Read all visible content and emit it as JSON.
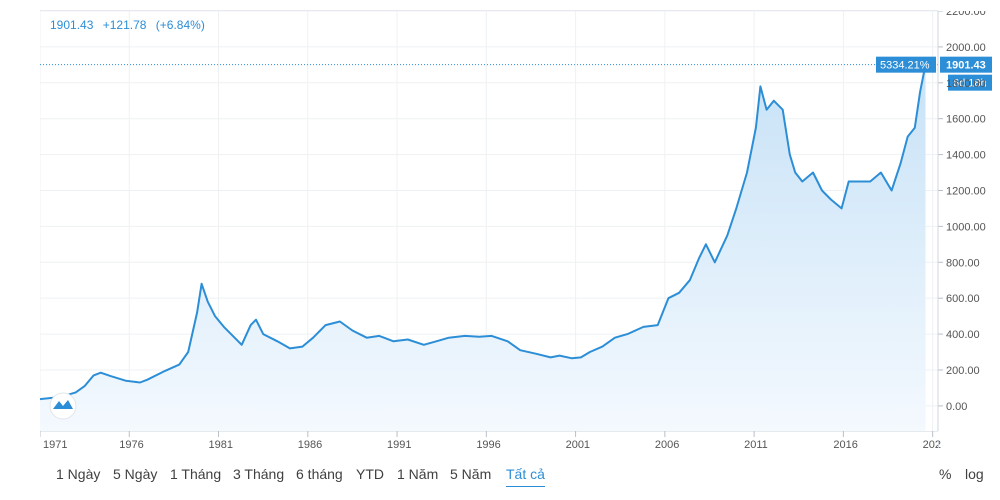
{
  "header": {
    "last_value": "1901.43",
    "change": "+121.78",
    "change_pct": "(+6.84%)"
  },
  "price_tags": {
    "percent_label": "5334.21%",
    "value_label": "1901.43",
    "time_label": "6d 18h"
  },
  "range_buttons": [
    {
      "label": "1 Ngày"
    },
    {
      "label": "5 Ngày"
    },
    {
      "label": "1 Tháng"
    },
    {
      "label": "3 Tháng"
    },
    {
      "label": "6 tháng"
    },
    {
      "label": "YTD"
    },
    {
      "label": "1 Năm"
    },
    {
      "label": "5 Năm"
    },
    {
      "label": "Tất cả"
    }
  ],
  "active_range": "Tất cả",
  "options": {
    "percent": "%",
    "log": "log"
  },
  "colors": {
    "line": "#2c8ed6",
    "fill_top": "#c7e2f7",
    "fill_bottom": "#f4f9fe",
    "tag_bg": "#2c8ed6",
    "tag_text": "#ffffff"
  },
  "chart_data": {
    "type": "area",
    "title": "",
    "xlabel": "",
    "ylabel": "",
    "x_tick_labels": [
      "1971",
      "1976",
      "1981",
      "1986",
      "1991",
      "1996",
      "2001",
      "2006",
      "2011",
      "2016",
      "202"
    ],
    "y_tick_labels": [
      "2200.00",
      "2000.00",
      "1800.00",
      "1600.00",
      "1400.00",
      "1200.00",
      "1000.00",
      "800.00",
      "600.00",
      "400.00",
      "200.00",
      "0.00"
    ],
    "ylim": [
      -140,
      2200
    ],
    "xlim": [
      1971,
      2021.3
    ],
    "grid": true,
    "series": [
      {
        "x": [
          1971,
          1972,
          1972.5,
          1973,
          1973.5,
          1974,
          1974.4,
          1975,
          1975.8,
          1976.6,
          1977,
          1978,
          1978.8,
          1979.3,
          1979.8,
          1980.05,
          1980.4,
          1980.8,
          1981.3,
          1982.3,
          1982.8,
          1983.1,
          1983.5,
          1984.3,
          1985.0,
          1985.7,
          1986.3,
          1987.0,
          1987.8,
          1988.5,
          1989.3,
          1990.0,
          1990.8,
          1991.6,
          1992.5,
          1993.2,
          1993.9,
          1994.8,
          1995.6,
          1996.3,
          1997.2,
          1997.9,
          1998.8,
          1999.6,
          2000.1,
          2000.8,
          2001.3,
          2001.8,
          2002.5,
          2003.2,
          2003.9,
          2004.8,
          2005.6,
          2006.2,
          2006.8,
          2007.4,
          2007.9,
          2008.3,
          2008.8,
          2009.5,
          2010.0,
          2010.6,
          2011.1,
          2011.35,
          2011.7,
          2012.1,
          2012.6,
          2013.0,
          2013.3,
          2013.7,
          2014.3,
          2014.8,
          2015.3,
          2015.9,
          2016.3,
          2016.8,
          2017.5,
          2018.1,
          2018.7,
          2019.2,
          2019.6,
          2020.0,
          2020.3,
          2020.6
        ],
        "y": [
          38,
          48,
          60,
          75,
          110,
          170,
          185,
          165,
          140,
          130,
          145,
          195,
          230,
          300,
          520,
          680,
          580,
          500,
          440,
          340,
          450,
          480,
          400,
          360,
          320,
          330,
          380,
          450,
          470,
          420,
          380,
          390,
          360,
          370,
          340,
          360,
          380,
          390,
          385,
          390,
          360,
          310,
          290,
          270,
          280,
          265,
          270,
          300,
          330,
          380,
          400,
          440,
          450,
          600,
          630,
          700,
          820,
          900,
          800,
          950,
          1100,
          1300,
          1550,
          1780,
          1650,
          1700,
          1650,
          1400,
          1300,
          1250,
          1300,
          1200,
          1150,
          1100,
          1250,
          1250,
          1250,
          1300,
          1200,
          1350,
          1500,
          1550,
          1750,
          1901
        ]
      }
    ]
  }
}
